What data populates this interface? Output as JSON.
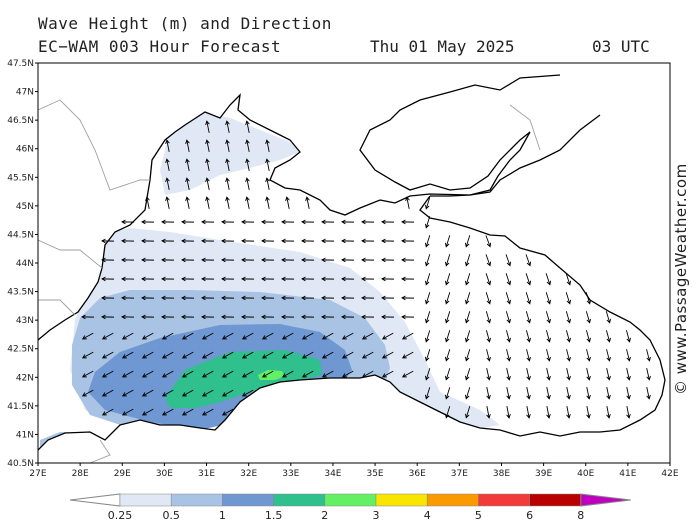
{
  "header": {
    "title": "Wave Height (m) and Direction",
    "model_line": "EC−WAM 003 Hour Forecast",
    "date": "Thu 01 May 2025",
    "time": "03 UTC"
  },
  "credit": "© www.PassageWeather.com",
  "axes": {
    "lat_labels": [
      "47.5N",
      "47N",
      "46.5N",
      "46N",
      "45.5N",
      "45N",
      "44.5N",
      "44N",
      "43.5N",
      "43N",
      "42.5N",
      "42N",
      "41.5N",
      "41N",
      "40.5N"
    ],
    "lon_labels": [
      "27E",
      "28E",
      "29E",
      "30E",
      "31E",
      "32E",
      "33E",
      "34E",
      "35E",
      "36E",
      "37E",
      "38E",
      "39E",
      "40E",
      "41E",
      "42E"
    ]
  },
  "legend": {
    "labels": [
      "0.25",
      "0.5",
      "1",
      "1.5",
      "2",
      "3",
      "4",
      "5",
      "6",
      "8"
    ],
    "colors": [
      "#e0e8f6",
      "#a9c3e4",
      "#6f97d2",
      "#30c08d",
      "#64f064",
      "#f8e600",
      "#f89a00",
      "#f23a3a",
      "#b80000",
      "#c000c0"
    ]
  },
  "colors": {
    "land": "#ffffff",
    "coast": "#000000",
    "border": "#a0a0a0",
    "band_025": "#e0e8f6",
    "band_05": "#a9c3e4",
    "band_1": "#6f97d2",
    "band_15": "#30c08d",
    "band_2": "#64f064"
  }
}
